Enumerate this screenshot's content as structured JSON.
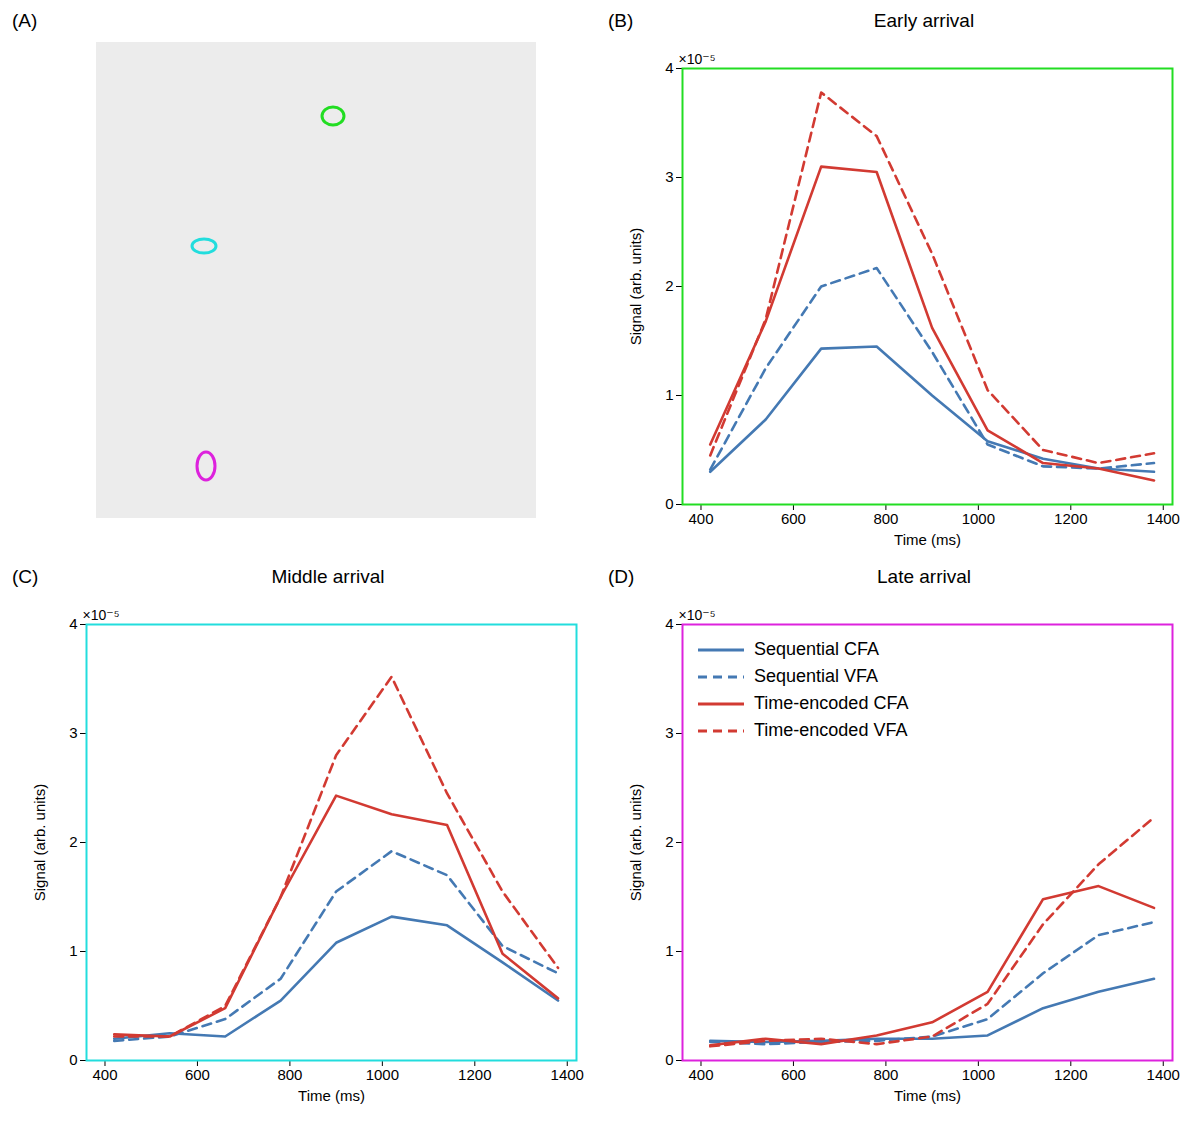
{
  "image_panel": {
    "panel": "(A)",
    "colors": [
      "#22dd22",
      "#22dddd",
      "#dd22dd"
    ]
  },
  "chart_data": [
    {
      "type": "line",
      "panel": "(B)",
      "title": "Early arrival",
      "color": "#22dd22",
      "x_label": "Time (ms)",
      "y_label": "Signal (arb. units)",
      "annotation": "×10⁻⁵",
      "x": [
        420,
        540,
        660,
        780,
        900,
        1020,
        1140,
        1260,
        1380
      ],
      "xlim": [
        360,
        1420
      ],
      "xticks": [
        400,
        600,
        800,
        1000,
        1200,
        1400
      ],
      "ylim": [
        0,
        4e-05
      ],
      "yticks": [
        0,
        {
          "value": 1e-05,
          "label": "1"
        },
        {
          "value": 2e-05,
          "label": "2"
        },
        {
          "value": 3e-05,
          "label": "3"
        },
        {
          "value": 4e-05,
          "label": "4"
        }
      ],
      "series": [
        {
          "name": "Sequential CFA",
          "color": "#4479b3",
          "line_style": "solid",
          "values": [
            3e-06,
            7.8e-06,
            1.43e-05,
            1.45e-05,
            1e-05,
            5.8e-06,
            4.2e-06,
            3.3e-06,
            3e-06
          ]
        },
        {
          "name": "Sequential VFA",
          "color": "#4479b3",
          "line_style": "dashed",
          "values": [
            3.2e-06,
            1.25e-05,
            2e-05,
            2.17e-05,
            1.4e-05,
            5.5e-06,
            3.5e-06,
            3.3e-06,
            3.8e-06
          ]
        },
        {
          "name": "Time-encoded CFA",
          "color": "#d23a32",
          "line_style": "solid",
          "values": [
            5.5e-06,
            1.68e-05,
            3.1e-05,
            3.05e-05,
            1.62e-05,
            6.8e-06,
            3.8e-06,
            3.3e-06,
            2.2e-06
          ]
        },
        {
          "name": "Time-encoded VFA",
          "color": "#d23a32",
          "line_style": "dashed",
          "values": [
            4.5e-06,
            1.7e-05,
            3.78e-05,
            3.38e-05,
            2.3e-05,
            1.05e-05,
            5e-06,
            3.8e-06,
            4.7e-06
          ]
        }
      ]
    },
    {
      "type": "line",
      "panel": "(C)",
      "title": "Middle arrival",
      "color": "#22dddd",
      "x_label": "Time (ms)",
      "y_label": "Signal (arb. units)",
      "annotation": "×10⁻⁵",
      "x": [
        420,
        540,
        660,
        780,
        900,
        1020,
        1140,
        1260,
        1380
      ],
      "xlim": [
        360,
        1420
      ],
      "xticks": [
        400,
        600,
        800,
        1000,
        1200,
        1400
      ],
      "ylim": [
        0,
        4e-05
      ],
      "yticks": [
        0,
        {
          "value": 1e-05,
          "label": "1"
        },
        {
          "value": 2e-05,
          "label": "2"
        },
        {
          "value": 3e-05,
          "label": "3"
        },
        {
          "value": 4e-05,
          "label": "4"
        }
      ],
      "series": [
        {
          "name": "Sequential CFA",
          "color": "#4479b3",
          "line_style": "solid",
          "values": [
            2e-06,
            2.5e-06,
            2.2e-06,
            5.5e-06,
            1.08e-05,
            1.32e-05,
            1.24e-05,
            9e-06,
            5.5e-06
          ]
        },
        {
          "name": "Sequential VFA",
          "color": "#4479b3",
          "line_style": "dashed",
          "values": [
            1.8e-06,
            2.2e-06,
            3.8e-06,
            7.5e-06,
            1.55e-05,
            1.92e-05,
            1.7e-05,
            1.05e-05,
            8e-06
          ]
        },
        {
          "name": "Time-encoded CFA",
          "color": "#d23a32",
          "line_style": "solid",
          "values": [
            2.4e-06,
            2.2e-06,
            4.8e-06,
            1.5e-05,
            2.43e-05,
            2.26e-05,
            2.16e-05,
            9.8e-06,
            5.7e-06
          ]
        },
        {
          "name": "Time-encoded VFA",
          "color": "#d23a32",
          "line_style": "dashed",
          "values": [
            2.2e-06,
            2.2e-06,
            5e-06,
            1.5e-05,
            2.8e-05,
            3.52e-05,
            2.45e-05,
            1.55e-05,
            8.5e-06
          ]
        }
      ]
    },
    {
      "type": "line",
      "panel": "(D)",
      "title": "Late arrival",
      "color": "#dd22dd",
      "x_label": "Time (ms)",
      "y_label": "Signal (arb. units)",
      "annotation": "×10⁻⁵",
      "legend": "upper left",
      "x": [
        420,
        540,
        660,
        780,
        900,
        1020,
        1140,
        1260,
        1380
      ],
      "xlim": [
        360,
        1420
      ],
      "xticks": [
        400,
        600,
        800,
        1000,
        1200,
        1400
      ],
      "ylim": [
        0,
        4e-05
      ],
      "yticks": [
        0,
        {
          "value": 1e-05,
          "label": "1"
        },
        {
          "value": 2e-05,
          "label": "2"
        },
        {
          "value": 3e-05,
          "label": "3"
        },
        {
          "value": 4e-05,
          "label": "4"
        }
      ],
      "series": [
        {
          "name": "Sequential CFA",
          "color": "#4479b3",
          "line_style": "solid",
          "values": [
            1.8e-06,
            1.7e-06,
            1.8e-06,
            2e-06,
            2e-06,
            2.3e-06,
            4.8e-06,
            6.3e-06,
            7.5e-06
          ]
        },
        {
          "name": "Sequential VFA",
          "color": "#4479b3",
          "line_style": "dashed",
          "values": [
            1.7e-06,
            1.5e-06,
            1.7e-06,
            1.8e-06,
            2.2e-06,
            3.8e-06,
            8e-06,
            1.15e-05,
            1.27e-05
          ]
        },
        {
          "name": "Time-encoded CFA",
          "color": "#d23a32",
          "line_style": "solid",
          "values": [
            1.4e-06,
            2e-06,
            1.5e-06,
            2.3e-06,
            3.5e-06,
            6.3e-06,
            1.48e-05,
            1.6e-05,
            1.4e-05
          ]
        },
        {
          "name": "Time-encoded VFA",
          "color": "#d23a32",
          "line_style": "dashed",
          "values": [
            1.3e-06,
            1.8e-06,
            2e-06,
            1.5e-06,
            2.2e-06,
            5.2e-06,
            1.25e-05,
            1.8e-05,
            2.23e-05
          ]
        }
      ]
    }
  ]
}
